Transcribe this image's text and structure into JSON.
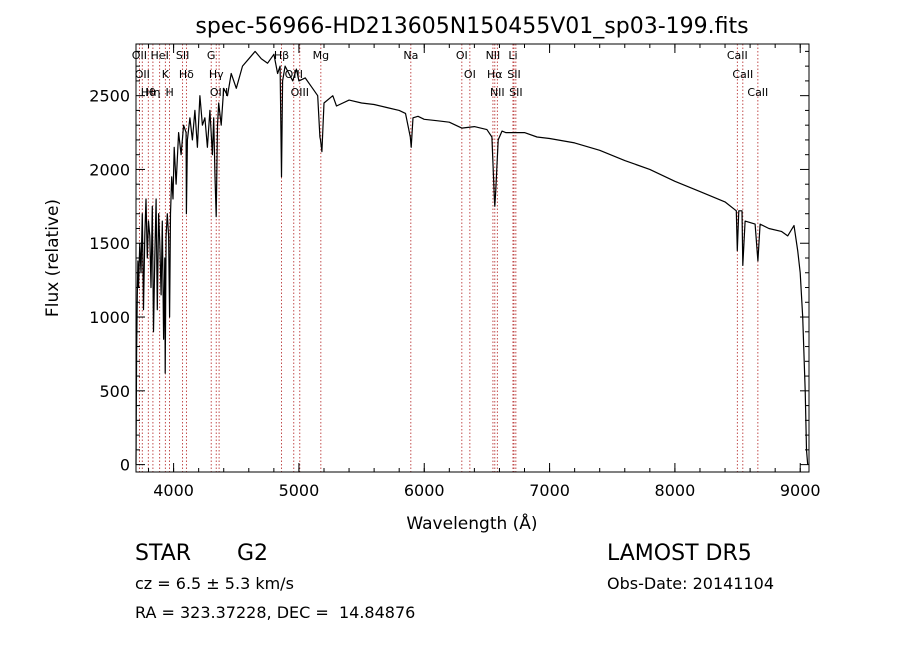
{
  "colors": {
    "spectrum": "#000000",
    "line_marker": "#b22222",
    "axes": "#000000"
  },
  "chart_data": {
    "type": "line",
    "title": "spec-56966-HD213605N150455V01_sp03-199.fits",
    "xlabel": "Wavelength (Å)",
    "ylabel": "Flux (relative)",
    "xlim": [
      3700,
      9070
    ],
    "ylim": [
      -50,
      2850
    ],
    "x_ticks": [
      4000,
      5000,
      6000,
      7000,
      8000,
      9000
    ],
    "y_ticks": [
      0,
      500,
      1000,
      1500,
      2000,
      2500
    ],
    "grid": false,
    "series": [
      {
        "x": [
          3700,
          3705,
          3710,
          3715,
          3720,
          3730,
          3740,
          3750,
          3760,
          3770,
          3780,
          3790,
          3800,
          3810,
          3820,
          3830,
          3840,
          3850,
          3860,
          3870,
          3880,
          3890,
          3900,
          3910,
          3920,
          3930,
          3933,
          3940,
          3950,
          3960,
          3968,
          3975,
          3985,
          3995,
          4005,
          4020,
          4040,
          4060,
          4080,
          4100,
          4102,
          4110,
          4130,
          4150,
          4170,
          4190,
          4210,
          4230,
          4250,
          4270,
          4290,
          4310,
          4320,
          4330,
          4340,
          4350,
          4360,
          4380,
          4400,
          4430,
          4460,
          4500,
          4550,
          4600,
          4650,
          4700,
          4750,
          4800,
          4830,
          4850,
          4861,
          4870,
          4890,
          4920,
          4950,
          4980,
          5000,
          5050,
          5100,
          5150,
          5167,
          5172,
          5183,
          5200,
          5270,
          5300,
          5400,
          5500,
          5600,
          5700,
          5800,
          5850,
          5889,
          5896,
          5910,
          5950,
          6000,
          6100,
          6200,
          6300,
          6400,
          6500,
          6540,
          6560,
          6563,
          6570,
          6590,
          6620,
          6650,
          6700,
          6800,
          6900,
          7000,
          7200,
          7400,
          7600,
          7800,
          8000,
          8200,
          8400,
          8490,
          8498,
          8510,
          8535,
          8542,
          8560,
          8600,
          8640,
          8662,
          8680,
          8750,
          8850,
          8900,
          8950,
          8980,
          9000,
          9020,
          9040,
          9050,
          9060
        ],
        "y": [
          0,
          750,
          1150,
          1380,
          1200,
          1500,
          1300,
          1700,
          1050,
          1550,
          1800,
          1400,
          1650,
          1550,
          1200,
          1750,
          900,
          1400,
          1800,
          1050,
          1700,
          1500,
          1150,
          1650,
          850,
          1400,
          620,
          1550,
          1700,
          1550,
          1000,
          1700,
          1950,
          1800,
          2150,
          1900,
          2250,
          2100,
          2300,
          2250,
          1700,
          2200,
          2350,
          2200,
          2400,
          2150,
          2500,
          2300,
          2350,
          2150,
          2400,
          2100,
          2350,
          1950,
          1680,
          2300,
          2450,
          2300,
          2550,
          2500,
          2650,
          2550,
          2700,
          2750,
          2800,
          2750,
          2720,
          2780,
          2650,
          2700,
          1950,
          2600,
          2700,
          2650,
          2600,
          2680,
          2600,
          2620,
          2560,
          2500,
          2220,
          2200,
          2120,
          2450,
          2500,
          2430,
          2470,
          2450,
          2440,
          2420,
          2400,
          2380,
          2220,
          2150,
          2350,
          2360,
          2340,
          2330,
          2320,
          2280,
          2290,
          2270,
          2220,
          1800,
          1750,
          1850,
          2200,
          2260,
          2250,
          2250,
          2250,
          2220,
          2210,
          2180,
          2130,
          2060,
          2000,
          1920,
          1850,
          1780,
          1720,
          1450,
          1720,
          1720,
          1350,
          1650,
          1640,
          1630,
          1380,
          1630,
          1600,
          1580,
          1550,
          1620,
          1450,
          1300,
          1000,
          500,
          100,
          0
        ]
      }
    ],
    "line_markers": [
      {
        "wl": 3727,
        "label": "OII"
      },
      {
        "wl": 3750,
        "label": "OII"
      },
      {
        "wl": 3798,
        "label": "Hθ"
      },
      {
        "wl": 3835,
        "label": "Hη"
      },
      {
        "wl": 3889,
        "label": "HeI"
      },
      {
        "wl": 3934,
        "label": "K"
      },
      {
        "wl": 3968,
        "label": "H"
      },
      {
        "wl": 4072,
        "label": "SII"
      },
      {
        "wl": 4102,
        "label": "Hδ"
      },
      {
        "wl": 4300,
        "label": "G"
      },
      {
        "wl": 4340,
        "label": "Hγ"
      },
      {
        "wl": 4363,
        "label": "OIII"
      },
      {
        "wl": 4861,
        "label": "Hβ"
      },
      {
        "wl": 4959,
        "label": "OIII"
      },
      {
        "wl": 5007,
        "label": "OIII"
      },
      {
        "wl": 5175,
        "label": "Mg"
      },
      {
        "wl": 5893,
        "label": "Na"
      },
      {
        "wl": 6300,
        "label": "OI"
      },
      {
        "wl": 6364,
        "label": "OI"
      },
      {
        "wl": 6548,
        "label": "NII"
      },
      {
        "wl": 6563,
        "label": "Hα"
      },
      {
        "wl": 6583,
        "label": "NII"
      },
      {
        "wl": 6708,
        "label": "Li"
      },
      {
        "wl": 6716,
        "label": "SII"
      },
      {
        "wl": 6731,
        "label": "SII"
      },
      {
        "wl": 8498,
        "label": "CaII"
      },
      {
        "wl": 8542,
        "label": "CaII"
      },
      {
        "wl": 8662,
        "label": "CaII"
      }
    ]
  },
  "info": {
    "class_label": "STAR",
    "subclass_label": "G2",
    "cz_text": "cz = 6.5 ± 5.3 km/s",
    "radec_text": "RA = 323.37228, DEC =  14.84876",
    "survey": "LAMOST DR5",
    "obs_date": "Obs-Date: 20141104"
  }
}
